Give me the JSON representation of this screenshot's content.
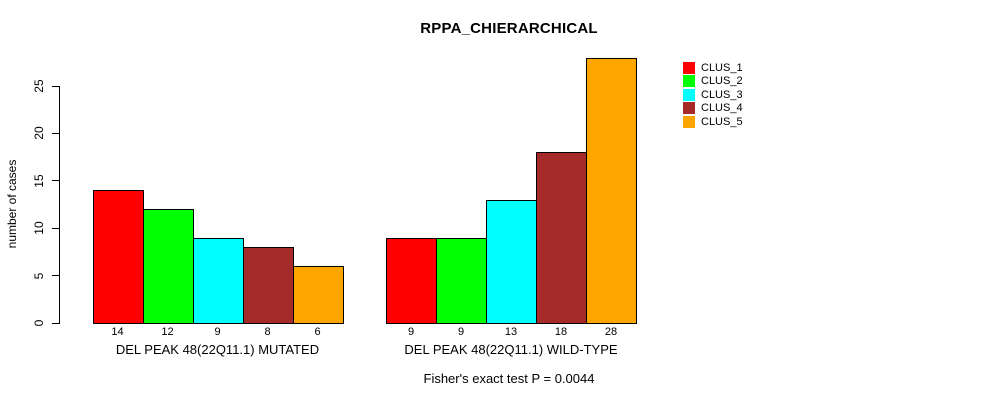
{
  "chart_data": {
    "type": "bar",
    "title": "RPPA_CHIERARCHICAL",
    "xlabel": "",
    "ylabel": "number of cases",
    "yticks": [
      0,
      5,
      10,
      15,
      20,
      25
    ],
    "ylim": [
      0,
      28
    ],
    "grid": false,
    "legend_position": "right",
    "series_colors": [
      "#FF0000",
      "#00FF00",
      "#00FFFF",
      "#A52A2A",
      "#FFA500"
    ],
    "legend": [
      "CLUS_1",
      "CLUS_2",
      "CLUS_3",
      "CLUS_4",
      "CLUS_5"
    ],
    "groups": [
      {
        "label": "DEL PEAK 48(22Q11.1) MUTATED",
        "values": [
          14,
          12,
          9,
          8,
          6
        ]
      },
      {
        "label": "DEL PEAK 48(22Q11.1) WILD-TYPE",
        "values": [
          9,
          9,
          13,
          18,
          28
        ]
      }
    ],
    "annotation": "Fisher's exact test P = 0.0044"
  }
}
